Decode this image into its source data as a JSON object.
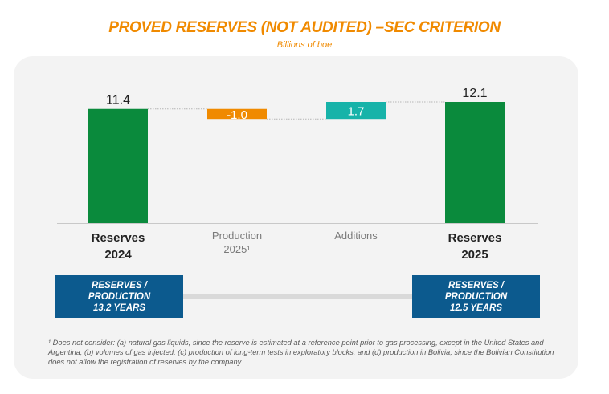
{
  "header": {
    "title": "PROVED RESERVES (NOT AUDITED) –SEC CRITERION",
    "subtitle": "Billions of boe"
  },
  "colors": {
    "title": "#f08a00",
    "reserves_bar": "#0a8a3c",
    "production_bar": "#f08a00",
    "additions_bar": "#17b3a9",
    "rp_box": "#0c5a8e"
  },
  "chart_data": {
    "type": "bar",
    "subtype": "waterfall",
    "title": "PROVED RESERVES (NOT AUDITED) –SEC CRITERION",
    "unit": "Billions of boe",
    "ylim": [
      0,
      12.1
    ],
    "steps": [
      {
        "key": "reserves-2024",
        "label": "Reserves\n2024",
        "value": 11.4,
        "value_label": "11.4",
        "kind": "total",
        "base": 0,
        "color": "#0a8a3c",
        "emphasis": true
      },
      {
        "key": "production-2025",
        "label": "Production\n2025¹",
        "value": -1.0,
        "value_label": "-1.0",
        "kind": "delta",
        "base": 11.4,
        "color": "#f08a00",
        "emphasis": false
      },
      {
        "key": "additions",
        "label": "Additions",
        "value": 1.7,
        "value_label": "1.7",
        "kind": "delta",
        "base": 10.4,
        "color": "#17b3a9",
        "emphasis": false
      },
      {
        "key": "reserves-2025",
        "label": "Reserves\n2025",
        "value": 12.1,
        "value_label": "12.1",
        "kind": "total",
        "base": 0,
        "color": "#0a8a3c",
        "emphasis": true
      }
    ]
  },
  "ratio_boxes": {
    "left": "RESERVES /\nPRODUCTION\n13.2 YEARS",
    "right": "RESERVES /\nPRODUCTION\n12.5 YEARS"
  },
  "footnote": "¹ Does not consider: (a) natural gas liquids, since the reserve is estimated at a reference point prior to gas processing, except in the United States and Argentina; (b) volumes of gas injected; (c) production of long-term tests in exploratory blocks; and (d) production in Bolivia, since the Bolivian Constitution does not allow the registration of reserves by the company."
}
